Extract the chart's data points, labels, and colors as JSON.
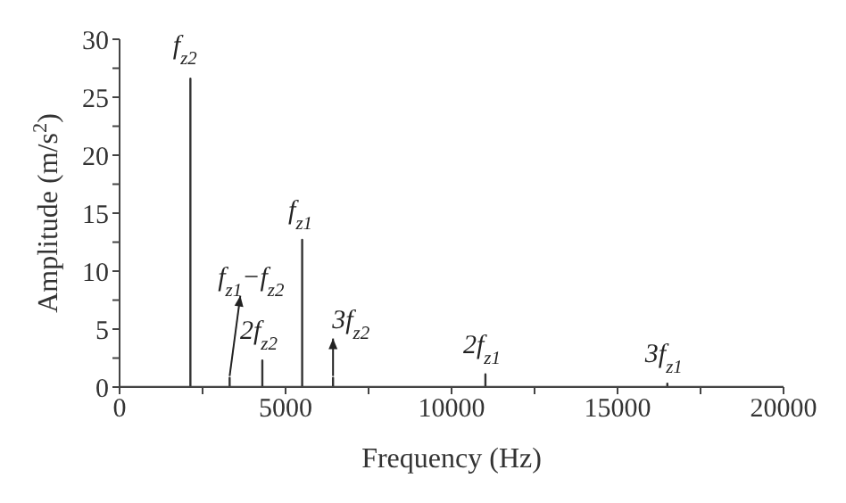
{
  "chart_data": {
    "type": "line",
    "xlabel": "Frequency (Hz)",
    "ylabel": "Amplitude (m/s$^{2}$)",
    "x": [
      0,
      2133,
      2133,
      2133,
      3315,
      3315,
      3315,
      4300,
      4300,
      4300,
      5500,
      5500,
      5500,
      6430,
      6430,
      6430,
      11020,
      11020,
      11020,
      16500,
      16500,
      16500,
      20000
    ],
    "values": [
      0,
      0,
      26.6,
      0,
      0,
      0.8,
      0,
      0,
      2.3,
      0,
      0,
      12.7,
      0,
      0,
      0.8,
      0,
      0,
      1.1,
      0,
      0,
      0.3,
      0,
      0
    ],
    "color": "#333333",
    "marker": "none",
    "line_style": "solid",
    "grid": false,
    "legend": false,
    "xlim": [
      0,
      20000
    ],
    "xticks": [
      0,
      {
        "value": 2500,
        "label": null
      },
      5000,
      {
        "value": 7500,
        "label": null
      },
      10000,
      {
        "value": 12500,
        "label": null
      },
      15000,
      {
        "value": 17500,
        "label": null
      },
      20000
    ],
    "ylim": [
      0,
      30
    ],
    "yticks": [
      0,
      {
        "value": 2.5,
        "label": null
      },
      5,
      {
        "value": 7.5,
        "label": null
      },
      10,
      {
        "value": 12.5,
        "label": null
      },
      15,
      {
        "value": 17.5,
        "label": null
      },
      20,
      {
        "value": 22.5,
        "label": null
      },
      25,
      {
        "value": 27.5,
        "label": null
      },
      30
    ],
    "annotations": [
      {
        "text": "f$_{z2}$",
        "x": 2133,
        "y": 26.6
      },
      {
        "text": "f$_{z1}$−f$_{z2}$",
        "x": 3315,
        "y": 0.8
      },
      {
        "text": "2f$_{z2}$",
        "x": 4300,
        "y": 2.3
      },
      {
        "text": "f$_{z1}$",
        "x": 5500,
        "y": 12.7
      },
      {
        "text": "3f$_{z2}$",
        "x": 6430,
        "y": 0.8
      },
      {
        "text": "2f$_{z1}$",
        "x": 11020,
        "y": 1.1
      },
      {
        "text": "3f$_{z1}$",
        "x": 16500,
        "y": 0.3
      }
    ]
  }
}
